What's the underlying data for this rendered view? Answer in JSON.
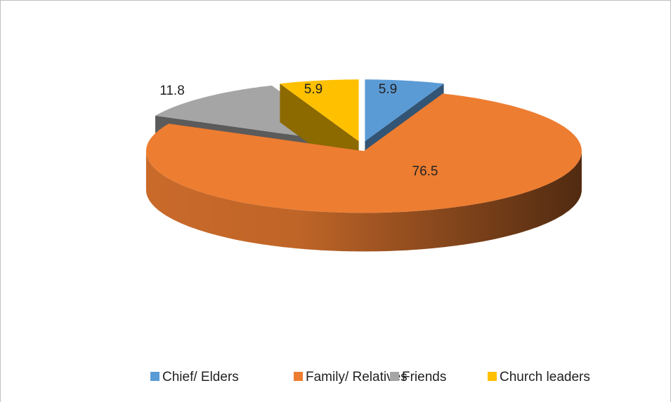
{
  "chart_data": {
    "type": "pie",
    "categories": [
      "Chief/ Elders",
      "Family/ Relatives",
      "Friends",
      "Church leaders"
    ],
    "values": [
      5.9,
      76.5,
      11.8,
      5.9
    ],
    "colors": [
      "#5b9bd5",
      "#ed7d31",
      "#a5a5a5",
      "#ffc000"
    ],
    "legend": "bottom"
  }
}
